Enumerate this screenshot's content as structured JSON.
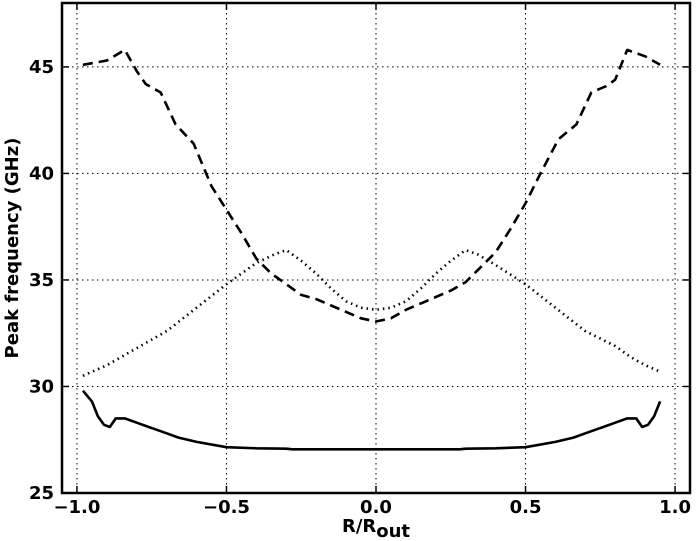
{
  "chart_data": {
    "type": "line",
    "xlabel": "R/R",
    "xlabel_subscript": "out",
    "ylabel": "Peak frequency (GHz)",
    "xlim": [
      -1.05,
      1.05
    ],
    "ylim": [
      25,
      48
    ],
    "grid": true,
    "xticks": [
      -1.0,
      -0.5,
      0.0,
      0.5,
      1.0
    ],
    "xtick_labels": [
      "−1.0",
      "−0.5",
      "0.0",
      "0.5",
      "1.0"
    ],
    "yticks": [
      25,
      30,
      35,
      40,
      45
    ],
    "ytick_labels": [
      "25",
      "30",
      "35",
      "40",
      "45"
    ],
    "series": [
      {
        "style": "dashed",
        "x": [
          -0.98,
          -0.9,
          -0.84,
          -0.8,
          -0.77,
          -0.72,
          -0.67,
          -0.61,
          -0.55,
          -0.5,
          -0.45,
          -0.4,
          -0.35,
          -0.3,
          -0.25,
          -0.2,
          -0.15,
          -0.1,
          -0.05,
          0.0,
          0.05,
          0.1,
          0.15,
          0.2,
          0.25,
          0.3,
          0.35,
          0.4,
          0.45,
          0.5,
          0.55,
          0.61,
          0.67,
          0.72,
          0.77,
          0.8,
          0.84,
          0.9,
          0.95
        ],
        "y": [
          45.1,
          45.3,
          45.8,
          44.8,
          44.2,
          43.8,
          42.3,
          41.4,
          39.4,
          38.3,
          37.2,
          36.0,
          35.3,
          34.8,
          34.3,
          34.1,
          33.8,
          33.5,
          33.2,
          33.05,
          33.2,
          33.6,
          33.9,
          34.2,
          34.5,
          34.9,
          35.6,
          36.3,
          37.4,
          38.6,
          40.0,
          41.6,
          42.3,
          43.8,
          44.1,
          44.4,
          45.8,
          45.5,
          45.1
        ]
      },
      {
        "style": "dotted",
        "x": [
          -0.98,
          -0.9,
          -0.8,
          -0.7,
          -0.6,
          -0.5,
          -0.4,
          -0.34,
          -0.3,
          -0.25,
          -0.2,
          -0.15,
          -0.1,
          -0.05,
          0.0,
          0.05,
          0.1,
          0.15,
          0.2,
          0.25,
          0.3,
          0.34,
          0.4,
          0.5,
          0.6,
          0.7,
          0.8,
          0.85,
          0.9,
          0.95
        ],
        "y": [
          30.5,
          31.0,
          31.8,
          32.6,
          33.7,
          34.8,
          35.8,
          36.2,
          36.4,
          35.9,
          35.3,
          34.6,
          34.0,
          33.7,
          33.6,
          33.7,
          34.0,
          34.6,
          35.3,
          35.9,
          36.4,
          36.2,
          35.7,
          34.8,
          33.7,
          32.6,
          31.9,
          31.4,
          31.0,
          30.7
        ]
      },
      {
        "style": "solid",
        "x": [
          -0.98,
          -0.95,
          -0.93,
          -0.91,
          -0.89,
          -0.87,
          -0.86,
          -0.84,
          -0.8,
          -0.76,
          -0.72,
          -0.66,
          -0.6,
          -0.5,
          -0.4,
          -0.3,
          -0.28,
          -0.2,
          -0.1,
          0.0,
          0.1,
          0.2,
          0.28,
          0.3,
          0.4,
          0.5,
          0.6,
          0.66,
          0.72,
          0.76,
          0.8,
          0.84,
          0.86,
          0.87,
          0.89,
          0.91,
          0.93,
          0.95
        ],
        "y": [
          29.8,
          29.3,
          28.6,
          28.2,
          28.1,
          28.5,
          28.5,
          28.5,
          28.3,
          28.1,
          27.9,
          27.6,
          27.4,
          27.15,
          27.1,
          27.08,
          27.05,
          27.05,
          27.05,
          27.05,
          27.05,
          27.05,
          27.05,
          27.08,
          27.1,
          27.15,
          27.4,
          27.6,
          27.9,
          28.1,
          28.3,
          28.5,
          28.5,
          28.5,
          28.1,
          28.2,
          28.6,
          29.3
        ]
      }
    ]
  }
}
